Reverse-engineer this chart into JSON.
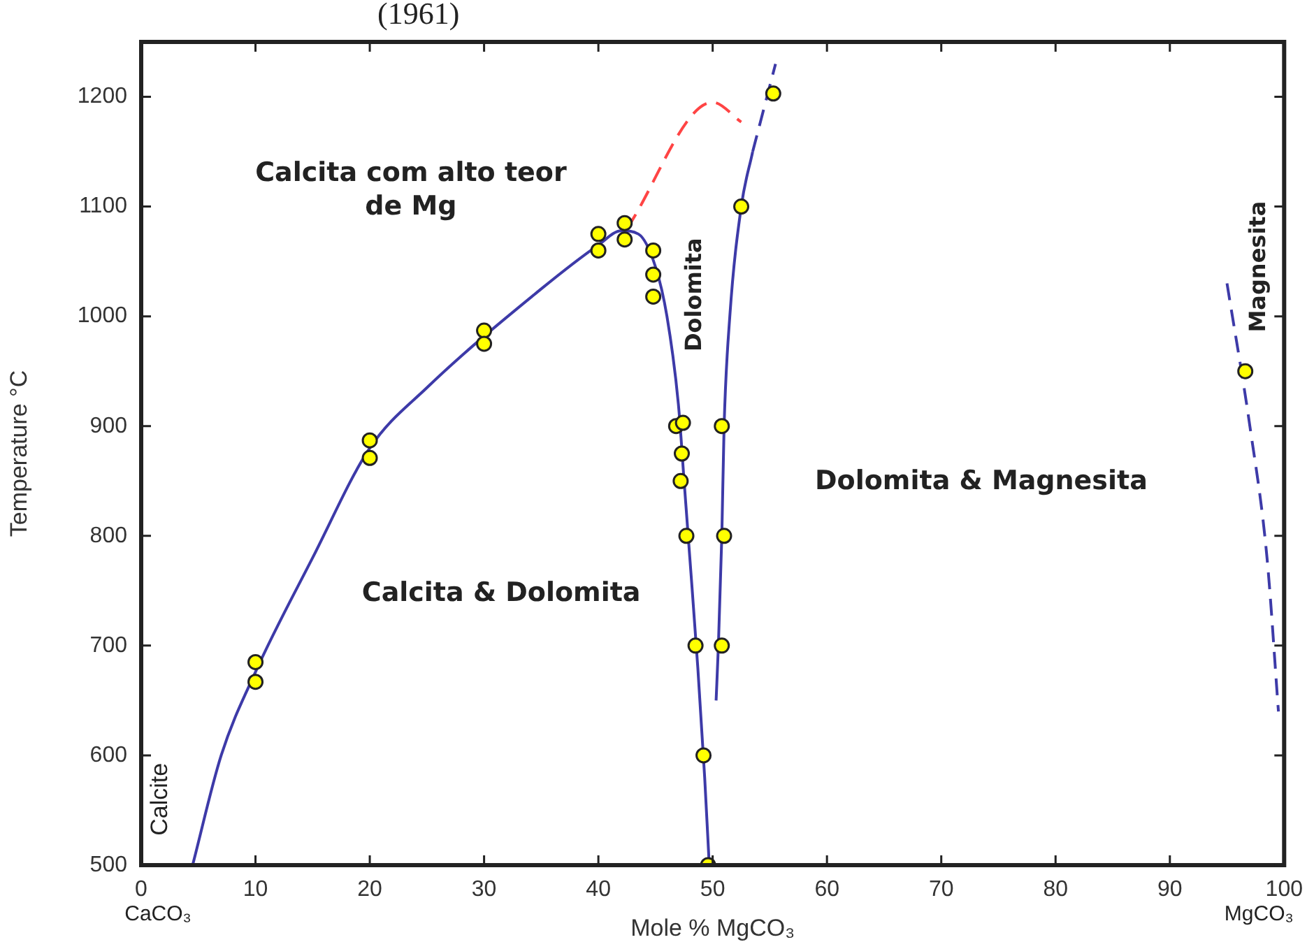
{
  "chart_data": {
    "type": "scatter",
    "xlabel": "Mole % MgCO₃",
    "ylabel": "Temperature °C",
    "xlim": [
      0,
      100
    ],
    "ylim": [
      500,
      1250
    ],
    "xticks": [
      0,
      10,
      20,
      30,
      40,
      50,
      60,
      70,
      80,
      90,
      100
    ],
    "yticks": [
      500,
      600,
      700,
      800,
      900,
      1000,
      1100,
      1200
    ],
    "grid": false,
    "legend": false,
    "series": [
      {
        "type": "line",
        "marker": "none",
        "color": "#3d3aa8",
        "line_style": "solid",
        "x": [
          4.5,
          7,
          10,
          15,
          20,
          25,
          35,
          40,
          42,
          43.5,
          45,
          46,
          47,
          47.5,
          48,
          48.7,
          49.3,
          49.7
        ],
        "values": [
          500,
          600,
          676,
          780,
          880,
          935,
          1025,
          1065,
          1078,
          1075,
          1045,
          1000,
          920,
          850,
          780,
          680,
          580,
          500
        ]
      },
      {
        "type": "line",
        "marker": "none",
        "color": "#3d3aa8",
        "line_style": "solid",
        "x": [
          50.3,
          50.5,
          50.8,
          51,
          51.5,
          52.5,
          53.5
        ],
        "values": [
          650,
          700,
          800,
          900,
          1000,
          1100,
          1150
        ]
      },
      {
        "type": "line",
        "marker": "none",
        "color": "#3d3aa8",
        "line_style": "dashed",
        "x": [
          53.5,
          55.5
        ],
        "values": [
          1150,
          1230
        ]
      },
      {
        "type": "line",
        "marker": "none",
        "color": "#ff4444",
        "line_style": "dashed",
        "x": [
          42.5,
          50,
          52.5
        ],
        "values": [
          1080,
          1195,
          1177
        ]
      },
      {
        "type": "line",
        "marker": "none",
        "color": "#3d3aa8",
        "line_style": "dashed",
        "x": [
          95,
          97,
          98.5,
          99.5
        ],
        "values": [
          1030,
          900,
          780,
          640
        ]
      },
      {
        "marker": "circle",
        "color": "#ffff00",
        "x": [
          10,
          10,
          20,
          20,
          30,
          30,
          40,
          40,
          42.3,
          42.3,
          44.8,
          44.8,
          44.8,
          46.8,
          47.4,
          47.3,
          47.2,
          47.7,
          48.5,
          49.2,
          49.6,
          50.8,
          51,
          50.8,
          52.5,
          55.3,
          96.6
        ],
        "values": [
          685,
          667,
          887,
          871,
          987,
          975,
          1075,
          1060,
          1085,
          1070,
          1060,
          1038,
          1018,
          900,
          903,
          875,
          850,
          800,
          700,
          600,
          500,
          900,
          800,
          700,
          1100,
          1203,
          950
        ]
      }
    ],
    "annotations": [
      "(1961)",
      "CaCO₃",
      "MgCO₃",
      "Calcita com alto teor\nde Mg",
      "Calcita & Dolomita",
      "Dolomita & Magnesita",
      "Dolomita",
      "Magnesita",
      "Calcite"
    ]
  }
}
